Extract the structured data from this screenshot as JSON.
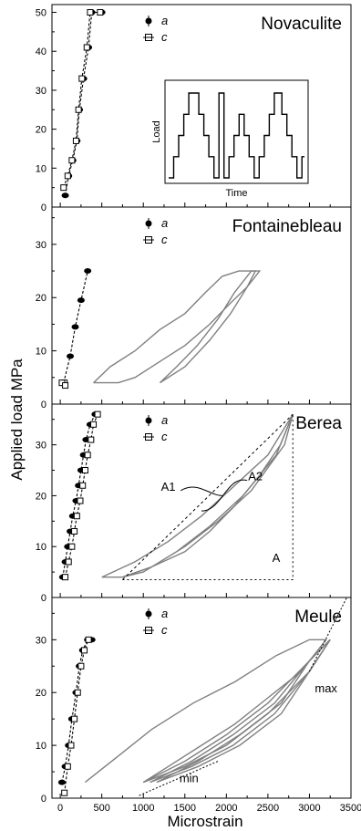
{
  "figure": {
    "ylabel": "Applied load MPa",
    "xlabel": "Microstrain",
    "x_ticks": [
      "0",
      "500",
      "1000",
      "1500",
      "2000",
      "2500",
      "3000",
      "3500"
    ]
  },
  "colors": {
    "black": "#000000",
    "gray": "#808080",
    "dark_gray": "#666666"
  },
  "chart_data": [
    {
      "type": "line",
      "title": "Novaculite",
      "xlim": [
        -100,
        3500
      ],
      "ylim": [
        0,
        52
      ],
      "y_ticks": [
        "0",
        "10",
        "20",
        "30",
        "40",
        "50"
      ],
      "legend": {
        "placement": "top-left",
        "entries": [
          "a",
          "c"
        ]
      },
      "series": [
        {
          "name": "a",
          "points": [
            [
              60,
              3
            ],
            [
              100,
              8
            ],
            [
              150,
              12
            ],
            [
              200,
              17
            ],
            [
              230,
              25
            ],
            [
              280,
              33
            ],
            [
              340,
              41
            ],
            [
              380,
              50
            ],
            [
              500,
              50
            ]
          ]
        },
        {
          "name": "c",
          "points": [
            [
              40,
              5
            ],
            [
              90,
              8
            ],
            [
              140,
              12
            ],
            [
              190,
              17
            ],
            [
              220,
              25
            ],
            [
              260,
              33
            ],
            [
              320,
              41
            ],
            [
              360,
              50
            ],
            [
              480,
              50
            ]
          ]
        }
      ],
      "inset": {
        "xlabel": "Time",
        "ylabel": "Load",
        "load_profile": [
          1,
          1,
          2,
          2,
          3,
          3,
          4,
          4,
          5,
          5,
          5,
          5,
          4,
          4,
          3,
          3,
          2,
          2,
          1,
          1,
          5,
          5,
          1,
          1,
          2,
          2,
          3,
          3,
          4,
          4,
          3,
          3,
          2,
          2,
          1,
          1,
          2,
          2,
          3,
          3,
          4,
          4,
          5,
          5,
          5,
          4,
          4,
          3,
          3,
          2,
          2,
          1,
          1,
          2
        ]
      }
    },
    {
      "type": "line",
      "title": "Fontainebleau",
      "xlim": [
        -100,
        3500
      ],
      "ylim": [
        0,
        37
      ],
      "y_ticks": [
        "0",
        "10",
        "20",
        "30"
      ],
      "legend": {
        "placement": "top-left",
        "entries": [
          "a",
          "c"
        ]
      },
      "series": [
        {
          "name": "a",
          "points": [
            [
              40,
              4
            ],
            [
              120,
              9
            ],
            [
              180,
              14.5
            ],
            [
              250,
              19.5
            ],
            [
              330,
              25
            ]
          ]
        },
        {
          "name": "c",
          "points": [
            [
              50,
              4
            ],
            [
              20,
              4
            ],
            [
              60,
              3.5
            ]
          ]
        }
      ]
    },
    {
      "type": "line",
      "title": "Berea",
      "xlim": [
        -100,
        3500
      ],
      "ylim": [
        0,
        38
      ],
      "y_ticks": [
        "0",
        "10",
        "20",
        "30"
      ],
      "legend": {
        "placement": "top-left",
        "entries": [
          "a",
          "c"
        ]
      },
      "annotations": [
        "A1",
        "A2",
        "A"
      ],
      "series": [
        {
          "name": "a",
          "points": [
            [
              30,
              4
            ],
            [
              60,
              7
            ],
            [
              90,
              10
            ],
            [
              120,
              13
            ],
            [
              150,
              16
            ],
            [
              190,
              19
            ],
            [
              220,
              22
            ],
            [
              250,
              25
            ],
            [
              280,
              28
            ],
            [
              310,
              31
            ],
            [
              360,
              34
            ],
            [
              420,
              36
            ]
          ]
        },
        {
          "name": "c",
          "points": [
            [
              60,
              4
            ],
            [
              100,
              7
            ],
            [
              140,
              10
            ],
            [
              170,
              13
            ],
            [
              200,
              16
            ],
            [
              240,
              19
            ],
            [
              270,
              22
            ],
            [
              300,
              25
            ],
            [
              330,
              28
            ],
            [
              370,
              31
            ],
            [
              400,
              34
            ],
            [
              450,
              36
            ]
          ]
        }
      ]
    },
    {
      "type": "line",
      "title": "Meule",
      "xlim": [
        -100,
        3500
      ],
      "ylim": [
        0,
        38
      ],
      "y_ticks": [
        "0",
        "10",
        "20",
        "30"
      ],
      "legend": {
        "placement": "top-left",
        "entries": [
          "a",
          "c"
        ]
      },
      "annotations": [
        "max",
        "min"
      ],
      "series": [
        {
          "name": "a",
          "points": [
            [
              20,
              3
            ],
            [
              60,
              6
            ],
            [
              100,
              10
            ],
            [
              140,
              15
            ],
            [
              190,
              20
            ],
            [
              230,
              25
            ],
            [
              270,
              28
            ],
            [
              330,
              30
            ],
            [
              380,
              30
            ]
          ]
        },
        {
          "name": "c",
          "points": [
            [
              50,
              1
            ],
            [
              90,
              6
            ],
            [
              130,
              10
            ],
            [
              170,
              15
            ],
            [
              210,
              20
            ],
            [
              250,
              25
            ],
            [
              290,
              28
            ],
            [
              340,
              30
            ]
          ]
        }
      ]
    }
  ]
}
